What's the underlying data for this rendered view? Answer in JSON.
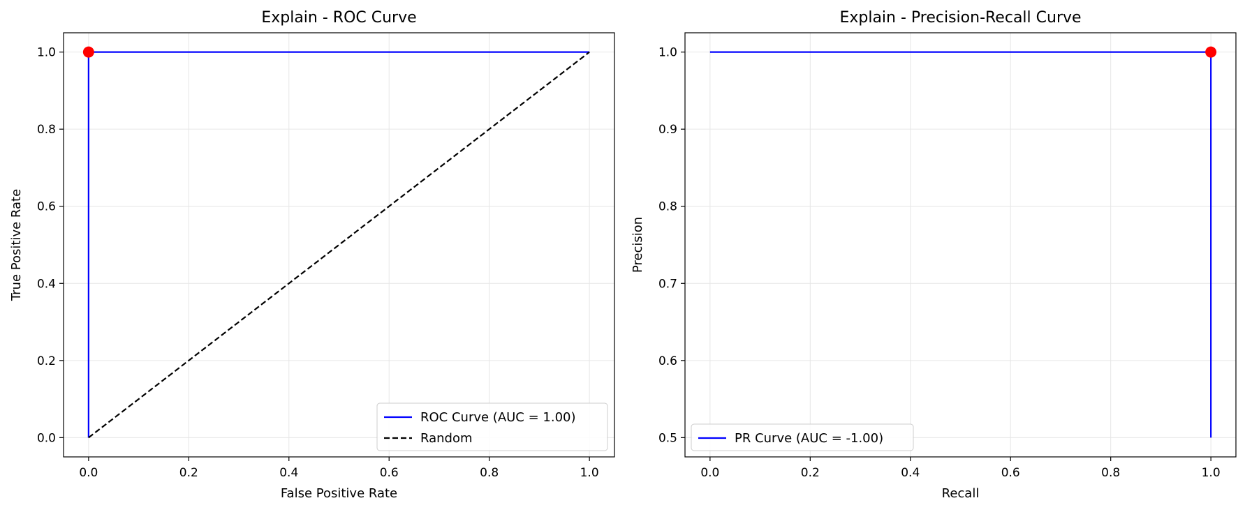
{
  "chart_data": [
    {
      "type": "line",
      "title": "Explain - ROC Curve",
      "xlabel": "False Positive Rate",
      "ylabel": "True Positive Rate",
      "xlim": [
        -0.05,
        1.05
      ],
      "ylim": [
        -0.05,
        1.05
      ],
      "xticks": [
        "0.0",
        "0.2",
        "0.4",
        "0.6",
        "0.8",
        "1.0"
      ],
      "yticks": [
        "0.0",
        "0.2",
        "0.4",
        "0.6",
        "0.8",
        "1.0"
      ],
      "grid": true,
      "legend_position": "bottom-right",
      "series": [
        {
          "name": "ROC Curve (AUC = 1.00)",
          "style": "solid",
          "color": "#0000ff",
          "x": [
            0.0,
            0.0,
            1.0
          ],
          "y": [
            0.0,
            1.0,
            1.0
          ]
        },
        {
          "name": "Random",
          "style": "dashed",
          "color": "#000000",
          "x": [
            0.0,
            1.0
          ],
          "y": [
            0.0,
            1.0
          ]
        }
      ],
      "markers": [
        {
          "x": 0.0,
          "y": 1.0,
          "color": "#ff0000"
        }
      ]
    },
    {
      "type": "line",
      "title": "Explain - Precision-Recall Curve",
      "xlabel": "Recall",
      "ylabel": "Precision",
      "xlim": [
        -0.05,
        1.05
      ],
      "ylim": [
        0.475,
        1.025
      ],
      "xticks": [
        "0.0",
        "0.2",
        "0.4",
        "0.6",
        "0.8",
        "1.0"
      ],
      "yticks": [
        "0.5",
        "0.6",
        "0.7",
        "0.8",
        "0.9",
        "1.0"
      ],
      "grid": true,
      "legend_position": "bottom-left",
      "series": [
        {
          "name": "PR Curve (AUC = -1.00)",
          "style": "solid",
          "color": "#0000ff",
          "x": [
            0.0,
            1.0,
            1.0
          ],
          "y": [
            1.0,
            1.0,
            0.5
          ]
        }
      ],
      "markers": [
        {
          "x": 1.0,
          "y": 1.0,
          "color": "#ff0000"
        }
      ]
    }
  ]
}
